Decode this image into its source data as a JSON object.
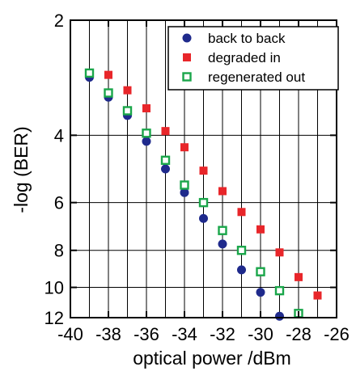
{
  "chart_data": {
    "type": "scatter",
    "title": "",
    "xlabel": "optical power  /dBm",
    "ylabel": "-log (BER)",
    "xlim": [
      -40,
      -26
    ],
    "ylim": [
      2,
      12
    ],
    "y_scale": "log-log (BER axis), inverted",
    "x_ticks": [
      -40,
      -38,
      -36,
      -34,
      -32,
      -30,
      -28,
      -26
    ],
    "x_tick_labels": [
      "-40",
      "-38",
      "-36",
      "-34",
      "-32",
      "-30",
      "-28",
      "-26"
    ],
    "y_ticks": [
      2,
      4,
      6,
      8,
      10,
      12
    ],
    "y_tick_labels": [
      "2",
      "4",
      "6",
      "8",
      "10",
      "12"
    ],
    "grid": "vertical lines every 1 dBm, horizontal lines at labeled ticks",
    "legend_position": "top-right",
    "series": [
      {
        "name": "back to back",
        "marker": "filled-circle",
        "color": "#1f2a8c",
        "points": [
          {
            "x": -39,
            "y": 2.82
          },
          {
            "x": -38,
            "y": 3.18
          },
          {
            "x": -37,
            "y": 3.55
          },
          {
            "x": -36,
            "y": 4.15
          },
          {
            "x": -35,
            "y": 4.9
          },
          {
            "x": -34,
            "y": 5.65
          },
          {
            "x": -33,
            "y": 6.6
          },
          {
            "x": -32,
            "y": 7.7
          },
          {
            "x": -31,
            "y": 9.0
          },
          {
            "x": -30,
            "y": 10.3
          },
          {
            "x": -29,
            "y": 11.9
          }
        ]
      },
      {
        "name": "degraded in",
        "marker": "filled-square",
        "color": "#e8262a",
        "points": [
          {
            "x": -38,
            "y": 2.78
          },
          {
            "x": -37,
            "y": 3.05
          },
          {
            "x": -36,
            "y": 3.4
          },
          {
            "x": -35,
            "y": 3.9
          },
          {
            "x": -34,
            "y": 4.3
          },
          {
            "x": -33,
            "y": 4.95
          },
          {
            "x": -32,
            "y": 5.6
          },
          {
            "x": -31,
            "y": 6.35
          },
          {
            "x": -30,
            "y": 7.05
          },
          {
            "x": -29,
            "y": 8.1
          },
          {
            "x": -28,
            "y": 9.4
          },
          {
            "x": -27,
            "y": 10.5
          }
        ]
      },
      {
        "name": "regenerated out",
        "marker": "open-square",
        "color": "#1aa64a",
        "points": [
          {
            "x": -39,
            "y": 2.75
          },
          {
            "x": -38,
            "y": 3.1
          },
          {
            "x": -37,
            "y": 3.45
          },
          {
            "x": -36,
            "y": 3.95
          },
          {
            "x": -35,
            "y": 4.65
          },
          {
            "x": -34,
            "y": 5.4
          },
          {
            "x": -33,
            "y": 6.0
          },
          {
            "x": -32,
            "y": 7.1
          },
          {
            "x": -31,
            "y": 8.0
          },
          {
            "x": -30,
            "y": 9.1
          },
          {
            "x": -29,
            "y": 10.2
          },
          {
            "x": -28,
            "y": 11.7
          }
        ]
      }
    ]
  }
}
